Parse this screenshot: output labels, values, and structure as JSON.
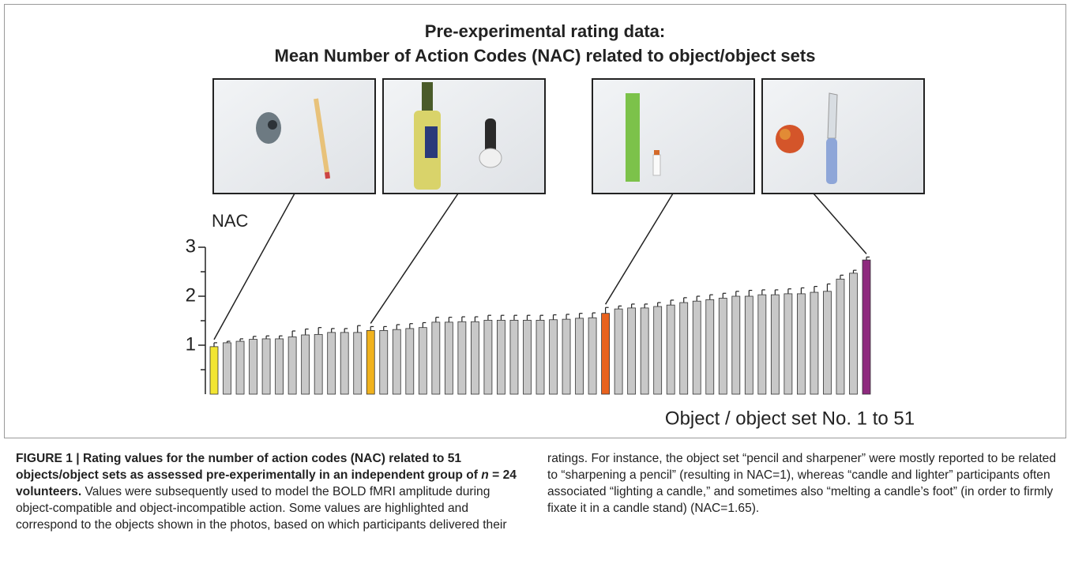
{
  "chart_data": {
    "type": "bar",
    "title": [
      "Pre-experimental rating data:",
      "Mean Number of Action Codes (NAC) related to object/object sets"
    ],
    "ylabel": "NAC",
    "xlabel": "Object / object set No. 1 to 51",
    "values": [
      0.97,
      1.05,
      1.08,
      1.12,
      1.13,
      1.13,
      1.17,
      1.21,
      1.22,
      1.26,
      1.26,
      1.26,
      1.3,
      1.3,
      1.32,
      1.34,
      1.36,
      1.47,
      1.47,
      1.48,
      1.48,
      1.51,
      1.51,
      1.51,
      1.51,
      1.51,
      1.52,
      1.53,
      1.55,
      1.56,
      1.65,
      1.74,
      1.76,
      1.76,
      1.79,
      1.82,
      1.87,
      1.9,
      1.93,
      1.96,
      2.0,
      2.0,
      2.03,
      2.03,
      2.05,
      2.05,
      2.08,
      2.1,
      2.35,
      2.47,
      2.74
    ],
    "errors": [
      0.08,
      0.03,
      0.05,
      0.06,
      0.06,
      0.06,
      0.12,
      0.12,
      0.14,
      0.08,
      0.08,
      0.14,
      0.08,
      0.08,
      0.1,
      0.1,
      0.1,
      0.1,
      0.1,
      0.1,
      0.1,
      0.1,
      0.1,
      0.1,
      0.1,
      0.1,
      0.1,
      0.1,
      0.1,
      0.1,
      0.12,
      0.06,
      0.08,
      0.08,
      0.08,
      0.1,
      0.1,
      0.1,
      0.1,
      0.1,
      0.1,
      0.12,
      0.1,
      0.1,
      0.1,
      0.12,
      0.12,
      0.15,
      0.08,
      0.06,
      0.06
    ],
    "color": "#c8c8c8",
    "colors": [
      "#f2e531",
      "#c8c8c8",
      "#c8c8c8",
      "#c8c8c8",
      "#c8c8c8",
      "#c8c8c8",
      "#c8c8c8",
      "#c8c8c8",
      "#c8c8c8",
      "#c8c8c8",
      "#c8c8c8",
      "#c8c8c8",
      "#f0b21e",
      "#c8c8c8",
      "#c8c8c8",
      "#c8c8c8",
      "#c8c8c8",
      "#c8c8c8",
      "#c8c8c8",
      "#c8c8c8",
      "#c8c8c8",
      "#c8c8c8",
      "#c8c8c8",
      "#c8c8c8",
      "#c8c8c8",
      "#c8c8c8",
      "#c8c8c8",
      "#c8c8c8",
      "#c8c8c8",
      "#c8c8c8",
      "#e8621e",
      "#c8c8c8",
      "#c8c8c8",
      "#c8c8c8",
      "#c8c8c8",
      "#c8c8c8",
      "#c8c8c8",
      "#c8c8c8",
      "#c8c8c8",
      "#c8c8c8",
      "#c8c8c8",
      "#c8c8c8",
      "#c8c8c8",
      "#c8c8c8",
      "#c8c8c8",
      "#c8c8c8",
      "#c8c8c8",
      "#c8c8c8",
      "#c8c8c8",
      "#c8c8c8",
      "#8e2a7e"
    ],
    "ylim": [
      0,
      3
    ],
    "yticks": [
      1,
      2,
      3
    ],
    "minor_yticks": [
      0.5,
      1.5,
      2.5
    ]
  },
  "caption": {
    "label": [
      "FIGURE 1 | Rating values for the number of action codes (NAC) related to 51 objects/object sets as assessed pre-experimentally in an independent group of ",
      "n",
      " = 24 volunteers."
    ],
    "text": "Values were subsequently used to model the BOLD fMRI amplitude during object-compatible and object-incompatible action. Some values are highlighted and correspond to the objects shown in the photos, based on which participants delivered their ratings. For instance, the object set “pencil and sharpener” were mostly reported to be related to “sharpening a pencil” (resulting in NAC=1), whereas “candle and lighter” participants often associated “lighting a candle,” and sometimes also “melting a candle’s foot” (in order to firmly fixate it in a candle stand) (NAC=1.65)."
  }
}
